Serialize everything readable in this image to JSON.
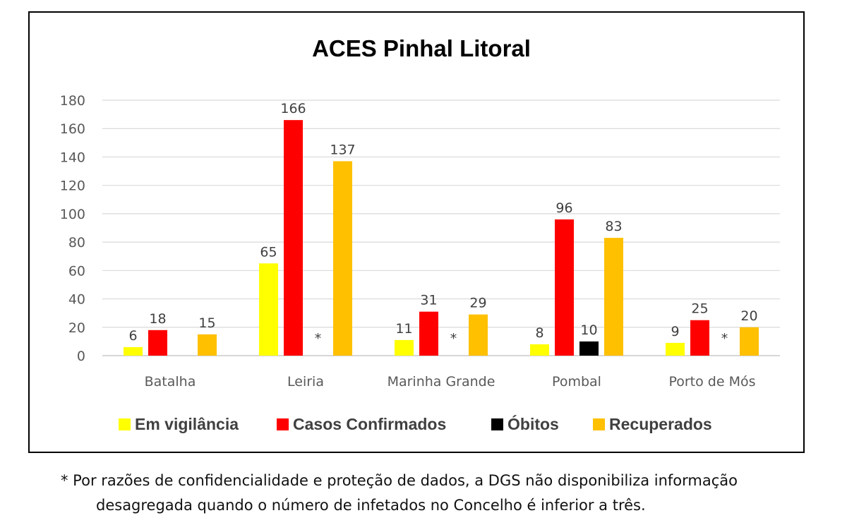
{
  "chart_data": {
    "type": "bar",
    "title": "ACES Pinhal Litoral",
    "categories": [
      "Batalha",
      "Leiria",
      "Marinha Grande",
      "Pombal",
      "Porto de Mós"
    ],
    "ylim": [
      0,
      180
    ],
    "yticks": [
      0,
      20,
      40,
      60,
      80,
      100,
      120,
      140,
      160,
      180
    ],
    "grid": true,
    "legend_position": "bottom",
    "series": [
      {
        "name": "Em vigilância",
        "color": "#FFFF00",
        "values": [
          6,
          65,
          11,
          8,
          9
        ]
      },
      {
        "name": "Casos Confirmados",
        "color": "#FF0000",
        "values": [
          18,
          166,
          31,
          96,
          25
        ]
      },
      {
        "name": "Óbitos",
        "color": "#000000",
        "values": [
          null,
          "*",
          "*",
          10,
          "*"
        ]
      },
      {
        "name": "Recuperados",
        "color": "#FFC000",
        "values": [
          15,
          137,
          29,
          83,
          20
        ]
      }
    ]
  },
  "footnote": {
    "line1": "* Por razões de confidencialidade e proteção de dados, a DGS não disponibiliza informação",
    "line2": "desagregada quando o número de infetados no Concelho é inferior a três."
  }
}
